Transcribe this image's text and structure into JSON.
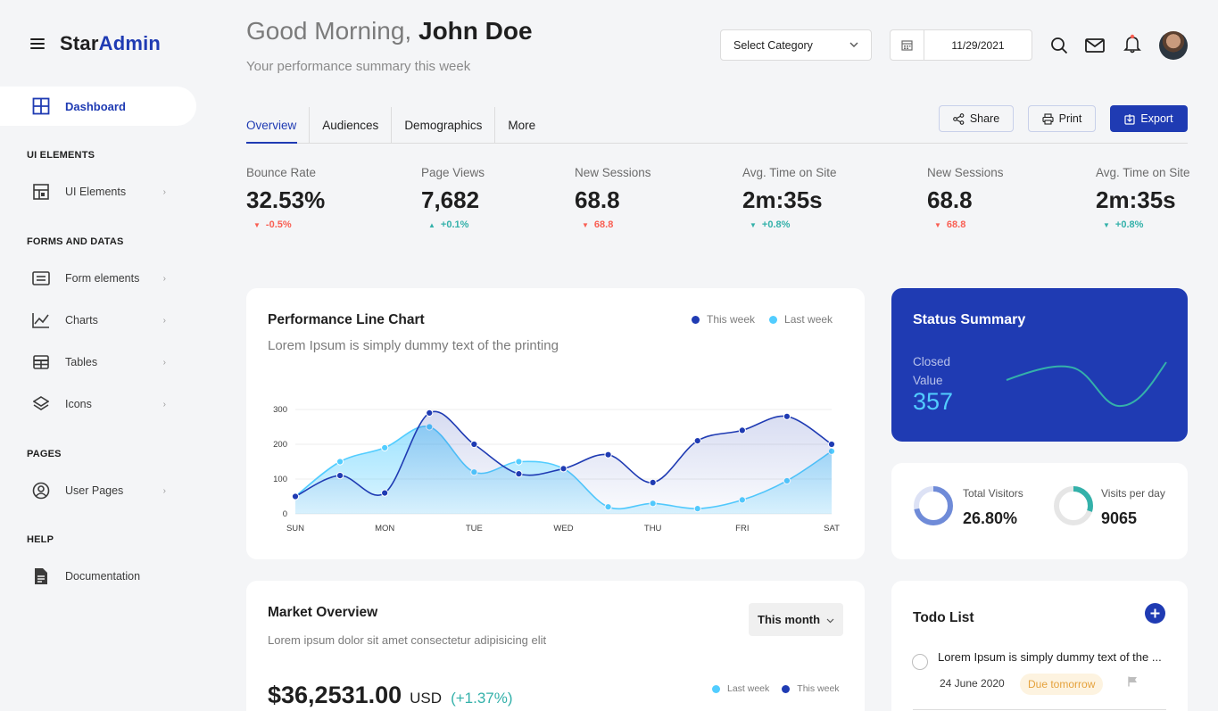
{
  "brand": {
    "part1": "Star",
    "part2": "Admin"
  },
  "sidebar": {
    "active": {
      "label": "Dashboard",
      "icon": "grid-icon"
    },
    "sections": [
      {
        "title": "UI ELEMENTS",
        "items": [
          {
            "label": "UI Elements",
            "icon": "layout-icon"
          }
        ]
      },
      {
        "title": "FORMS AND DATAS",
        "items": [
          {
            "label": "Form elements",
            "icon": "form-icon"
          },
          {
            "label": "Charts",
            "icon": "chart-line-icon"
          },
          {
            "label": "Tables",
            "icon": "table-icon"
          },
          {
            "label": "Icons",
            "icon": "layers-icon"
          }
        ]
      },
      {
        "title": "PAGES",
        "items": [
          {
            "label": "User Pages",
            "icon": "user-circle-icon"
          }
        ]
      },
      {
        "title": "HELP",
        "items": [
          {
            "label": "Documentation",
            "icon": "document-icon"
          }
        ]
      }
    ]
  },
  "header": {
    "greeting": "Good Morning,",
    "user_name": "John Doe",
    "subtitle": "Your performance summary this week",
    "category_select": "Select Category",
    "date": "11/29/2021"
  },
  "tabs": [
    "Overview",
    "Audiences",
    "Demographics",
    "More"
  ],
  "actions": {
    "share": "Share",
    "print": "Print",
    "export": "Export"
  },
  "stats": [
    {
      "title": "Bounce Rate",
      "value": "32.53%",
      "delta": "-0.5%",
      "dir": "down"
    },
    {
      "title": "Page Views",
      "value": "7,682",
      "delta": "+0.1%",
      "dir": "up"
    },
    {
      "title": "New Sessions",
      "value": "68.8",
      "delta": "68.8",
      "dir": "down"
    },
    {
      "title": "Avg. Time on Site",
      "value": "2m:35s",
      "delta": "+0.8%",
      "dir": "up-teal"
    },
    {
      "title": "New Sessions",
      "value": "68.8",
      "delta": "68.8",
      "dir": "down"
    },
    {
      "title": "Avg. Time on Site",
      "value": "2m:35s",
      "delta": "+0.8%",
      "dir": "up-teal"
    }
  ],
  "performance": {
    "title": "Performance Line Chart",
    "subtitle": "Lorem Ipsum is simply dummy text of the printing",
    "legend": [
      "This week",
      "Last week"
    ]
  },
  "chart_data": {
    "type": "area",
    "x": [
      "SUN",
      "",
      "MON",
      "",
      "TUE",
      "",
      "WED",
      "",
      "THU",
      "",
      "FRI",
      "",
      "SAT"
    ],
    "x_tick_labels": [
      "SUN",
      "MON",
      "TUE",
      "WED",
      "THU",
      "FRI",
      "SAT"
    ],
    "yticks": [
      0,
      100,
      200,
      300
    ],
    "ylim": [
      0,
      300
    ],
    "series": [
      {
        "name": "This week",
        "color": "#1f3bb3",
        "values": [
          50,
          110,
          60,
          290,
          200,
          115,
          130,
          170,
          90,
          210,
          240,
          280,
          200
        ]
      },
      {
        "name": "Last week",
        "color": "#52cdff",
        "values": [
          50,
          150,
          190,
          250,
          120,
          150,
          130,
          20,
          30,
          15,
          40,
          95,
          180
        ]
      }
    ],
    "grid": true
  },
  "status_summary": {
    "title": "Status Summary",
    "label1": "Closed",
    "label2": "Value",
    "value": "357"
  },
  "visitors": {
    "total_label": "Total Visitors",
    "total_value": "26.80%",
    "total_fraction": 0.72,
    "perday_label": "Visits per day",
    "perday_value": "9065",
    "perday_fraction": 0.3
  },
  "market": {
    "title": "Market Overview",
    "subtitle": "Lorem ipsum dolor sit amet consectetur adipisicing elit",
    "period": "This month",
    "amount": "$36,2531.00",
    "currency": "USD",
    "change": "(+1.37%)",
    "legend": [
      "Last week",
      "This week"
    ]
  },
  "todo": {
    "title": "Todo List",
    "items": [
      {
        "text": "Lorem Ipsum is simply dummy text of the ...",
        "date": "24 June 2020",
        "badge": "Due tomorrow"
      }
    ]
  }
}
